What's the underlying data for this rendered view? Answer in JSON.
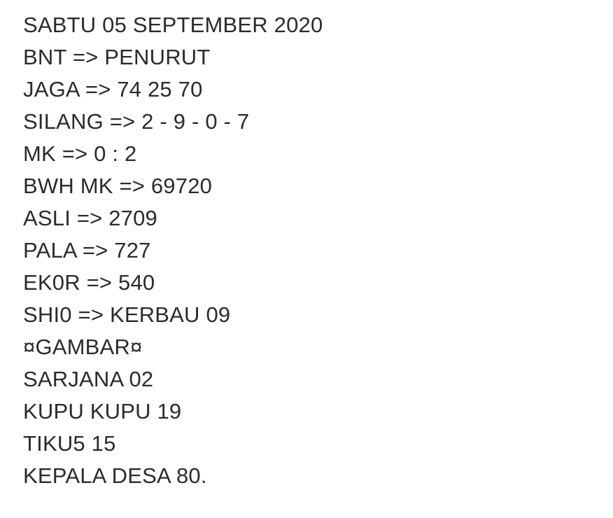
{
  "page": {
    "background_color": "#ffffff",
    "text_color": "#2b2b2b"
  },
  "document": {
    "lines": [
      "SABTU 05 SEPTEMBER 2020",
      "BNT => PENURUT",
      "JAGA => 74 25 70",
      "SILANG => 2 - 9 - 0 - 7",
      "MK => 0 : 2",
      "BWH MK => 69720",
      "ASLI => 2709",
      "PALA => 727",
      "EK0R => 540",
      "SHI0 => KERBAU 09",
      "¤GAMBAR¤",
      "SARJANA 02",
      "KUPU KUPU 19",
      "TIKU5 15",
      "KEPALA DESA 80."
    ]
  }
}
